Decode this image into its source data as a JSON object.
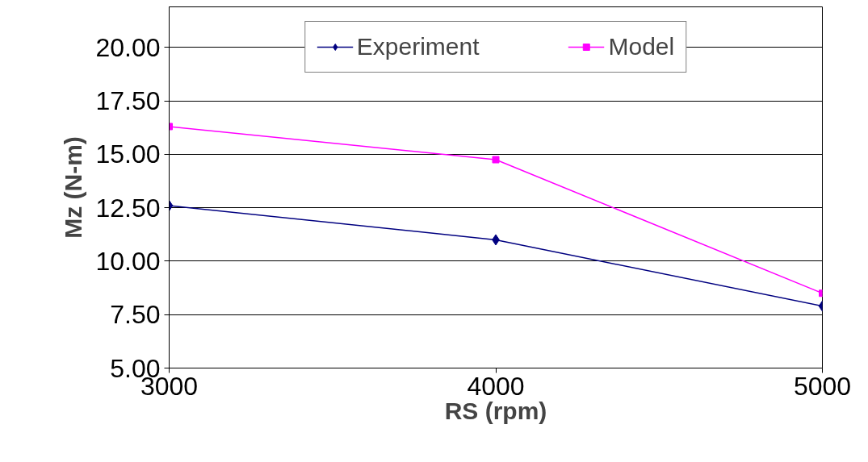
{
  "chart_data": {
    "type": "line",
    "xlabel": "RS (rpm)",
    "ylabel": "Mz (N-m)",
    "x": [
      3000,
      4000,
      5000
    ],
    "series": [
      {
        "name": "Experiment",
        "color": "#000080",
        "marker": "diamond",
        "values": [
          12.6,
          11.0,
          7.9
        ]
      },
      {
        "name": "Model",
        "color": "#ff00ff",
        "marker": "square",
        "values": [
          16.3,
          14.75,
          8.5
        ]
      }
    ],
    "xlim": [
      3000,
      5000
    ],
    "xticks": [
      3000,
      4000,
      5000
    ],
    "ylim": [
      5,
      21.9
    ],
    "yticks": [
      {
        "value": 5,
        "label": "5.00"
      },
      {
        "value": 7.5,
        "label": "7.50"
      },
      {
        "value": 10,
        "label": "10.00"
      },
      {
        "value": 12.5,
        "label": "12.50"
      },
      {
        "value": 15,
        "label": "15.00"
      },
      {
        "value": 17.5,
        "label": "17.50"
      },
      {
        "value": 20,
        "label": "20.00"
      }
    ],
    "grid": "y",
    "legend": "top",
    "line_style": "solid"
  }
}
